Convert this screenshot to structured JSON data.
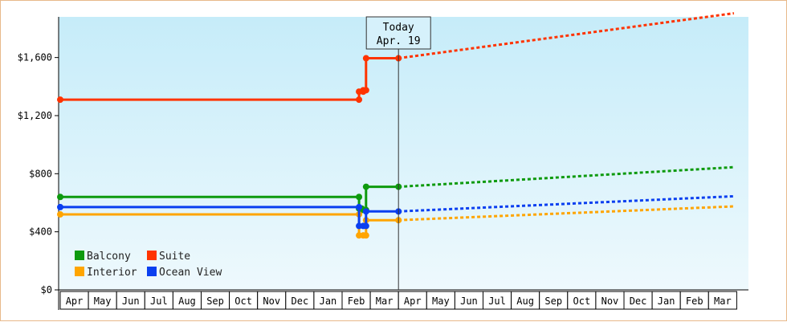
{
  "chart_data": {
    "type": "line",
    "x": [
      "Apr",
      "May",
      "Jun",
      "Jul",
      "Aug",
      "Sep",
      "Oct",
      "Nov",
      "Dec",
      "Jan",
      "Feb",
      "Mar",
      "Apr",
      "May",
      "Jun",
      "Jul",
      "Aug",
      "Sep",
      "Oct",
      "Nov",
      "Dec",
      "Jan",
      "Feb",
      "Mar"
    ],
    "yticks": [
      "$0",
      "$400",
      "$800",
      "$1,200",
      "$1,600"
    ],
    "ylim": [
      0,
      1880
    ],
    "today_marker": {
      "line1": "Today",
      "line2": "Apr. 19"
    },
    "legend": {
      "placement": "bottom-left"
    },
    "grid": false,
    "series": [
      {
        "name": "Balcony",
        "color": "#0e9a0e",
        "history": [
          [
            0,
            640
          ],
          [
            10.6,
            640
          ],
          [
            10.6,
            560
          ],
          [
            10.7,
            560
          ],
          [
            10.7,
            550
          ],
          [
            10.85,
            550
          ],
          [
            10.85,
            710
          ],
          [
            12.0,
            710
          ]
        ],
        "forecast": [
          [
            12.0,
            710
          ],
          [
            23.9,
            845
          ]
        ]
      },
      {
        "name": "Suite",
        "color": "#ff3300",
        "history": [
          [
            0,
            1310
          ],
          [
            10.6,
            1310
          ],
          [
            10.6,
            1365
          ],
          [
            10.75,
            1365
          ],
          [
            10.75,
            1375
          ],
          [
            10.85,
            1375
          ],
          [
            10.85,
            1595
          ],
          [
            12.0,
            1595
          ]
        ],
        "forecast": [
          [
            12.0,
            1595
          ],
          [
            23.9,
            1905
          ]
        ]
      },
      {
        "name": "Interior",
        "color": "#ffa500",
        "history": [
          [
            0,
            520
          ],
          [
            10.6,
            520
          ],
          [
            10.6,
            375
          ],
          [
            10.75,
            375
          ],
          [
            10.75,
            375
          ],
          [
            10.85,
            375
          ],
          [
            10.85,
            480
          ],
          [
            12.0,
            480
          ]
        ],
        "forecast": [
          [
            12.0,
            480
          ],
          [
            23.9,
            575
          ]
        ]
      },
      {
        "name": "Ocean View",
        "color": "#0a3ff0",
        "history": [
          [
            0,
            570
          ],
          [
            10.6,
            570
          ],
          [
            10.6,
            440
          ],
          [
            10.75,
            440
          ],
          [
            10.75,
            440
          ],
          [
            10.85,
            440
          ],
          [
            10.85,
            540
          ],
          [
            12.0,
            540
          ]
        ],
        "forecast": [
          [
            12.0,
            540
          ],
          [
            23.9,
            645
          ]
        ]
      }
    ]
  }
}
